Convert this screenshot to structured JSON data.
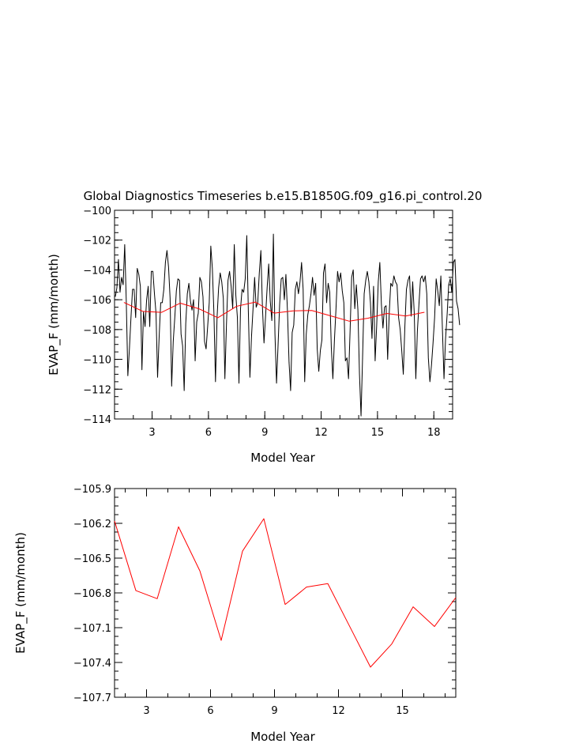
{
  "colors": {
    "monthly": "#000000",
    "annual": "#ff0000",
    "frame": "#000000"
  },
  "chart_data": [
    {
      "type": "line",
      "title": "Global Diagnostics Timeseries b.e15.B1850G.f09_g16.pi_control.20",
      "xlabel": "Model Year",
      "ylabel": "EVAP_F (mm/month)",
      "xlim": [
        1,
        19
      ],
      "ylim": [
        -114,
        -100
      ],
      "xticks": [
        3,
        6,
        9,
        12,
        15,
        18
      ],
      "xtick_labels": [
        "3",
        "6",
        "9",
        "12",
        "15",
        "18"
      ],
      "yticks": [
        -114,
        -112,
        -110,
        -108,
        -106,
        -104,
        -102,
        -100
      ],
      "ytick_labels": [
        "−114",
        "−112",
        "−110",
        "−108",
        "−106",
        "−104",
        "−102",
        "−100"
      ],
      "series": [
        {
          "color": "#000000",
          "x_start": 1.0417,
          "x_step": 0.08333,
          "values": [
            -105.8,
            -105.2,
            -103.3,
            -105.5,
            -104.5,
            -105.0,
            -102.3,
            -106.1,
            -111.1,
            -109.3,
            -107.2,
            -105.3,
            -105.3,
            -107.2,
            -103.9,
            -104.3,
            -105.1,
            -110.7,
            -106.8,
            -107.8,
            -106.0,
            -105.1,
            -107.8,
            -104.1,
            -104.1,
            -105.6,
            -106.9,
            -111.2,
            -108.5,
            -106.2,
            -106.2,
            -105.3,
            -103.5,
            -102.7,
            -103.8,
            -105.9,
            -111.8,
            -108.8,
            -107.2,
            -105.4,
            -104.6,
            -104.7,
            -108.3,
            -109.1,
            -112.1,
            -107.6,
            -105.6,
            -104.9,
            -106.1,
            -106.7,
            -106.0,
            -110.1,
            -107.5,
            -106.9,
            -104.5,
            -104.8,
            -105.8,
            -108.8,
            -109.3,
            -107.8,
            -106.2,
            -102.4,
            -103.9,
            -106.9,
            -111.5,
            -107.2,
            -105.2,
            -104.2,
            -104.8,
            -105.9,
            -111.3,
            -107.7,
            -104.7,
            -104.1,
            -105.1,
            -106.6,
            -102.3,
            -105.7,
            -107.2,
            -111.6,
            -106.6,
            -105.3,
            -105.5,
            -104.6,
            -101.7,
            -106.8,
            -111.2,
            -108.5,
            -106.6,
            -104.5,
            -106.5,
            -106.2,
            -104.2,
            -102.7,
            -106.5,
            -108.9,
            -107.1,
            -105.2,
            -103.6,
            -106.1,
            -107.4,
            -101.6,
            -108.3,
            -111.6,
            -109.0,
            -106.3,
            -104.6,
            -104.5,
            -106.0,
            -104.3,
            -106.8,
            -110.2,
            -112.1,
            -108.2,
            -107.7,
            -105.3,
            -104.8,
            -105.6,
            -104.8,
            -103.5,
            -105.3,
            -111.5,
            -108.3,
            -107.0,
            -106.4,
            -105.6,
            -104.5,
            -105.7,
            -104.9,
            -109.3,
            -110.8,
            -109.4,
            -108.7,
            -104.2,
            -103.6,
            -106.2,
            -104.9,
            -105.5,
            -109.2,
            -111.3,
            -108.7,
            -106.6,
            -104.1,
            -104.8,
            -104.2,
            -105.4,
            -106.2,
            -110.1,
            -109.9,
            -111.3,
            -108.1,
            -104.5,
            -104.0,
            -106.6,
            -105.0,
            -106.7,
            -111.0,
            -113.8,
            -109.8,
            -105.6,
            -104.7,
            -104.1,
            -104.8,
            -106.2,
            -108.6,
            -105.1,
            -110.1,
            -107.7,
            -104.8,
            -103.5,
            -106.3,
            -107.9,
            -106.5,
            -106.4,
            -110.0,
            -106.9,
            -104.9,
            -105.1,
            -104.4,
            -104.8,
            -105.0,
            -107.2,
            -108.0,
            -109.4,
            -111.0,
            -107.8,
            -105.3,
            -104.7,
            -104.4,
            -107.1,
            -104.8,
            -106.9,
            -111.3,
            -108.1,
            -106.3,
            -104.6,
            -104.4,
            -104.8,
            -104.4,
            -105.6,
            -109.9,
            -111.5,
            -110.4,
            -108.9,
            -107.2,
            -104.6,
            -105.4,
            -106.4,
            -104.4,
            -108.0,
            -111.3,
            -108.6,
            -107.0,
            -105.0,
            -104.6,
            -105.5,
            -103.5,
            -103.3,
            -106.1,
            -106.6,
            -107.7
          ]
        },
        {
          "color": "#ff0000",
          "x": [
            1.5,
            2.5,
            3.5,
            4.5,
            5.5,
            6.5,
            7.5,
            8.5,
            9.5,
            10.5,
            11.5,
            12.5,
            13.5,
            14.5,
            15.5,
            16.5,
            17.5
          ],
          "values": [
            -106.18,
            -106.78,
            -106.85,
            -106.23,
            -106.61,
            -107.21,
            -106.44,
            -106.16,
            -106.9,
            -106.75,
            -106.72,
            -107.08,
            -107.44,
            -107.24,
            -106.92,
            -107.09,
            -106.84
          ]
        }
      ]
    },
    {
      "type": "line",
      "title": "",
      "xlabel": "Model Year",
      "ylabel": "EVAP_F (mm/month)",
      "xlim": [
        1.5,
        17.5
      ],
      "ylim": [
        -107.7,
        -105.9
      ],
      "xticks": [
        3,
        6,
        9,
        12,
        15
      ],
      "xtick_labels": [
        "3",
        "6",
        "9",
        "12",
        "15"
      ],
      "yticks": [
        -107.7,
        -107.4,
        -107.1,
        -106.8,
        -106.5,
        -106.2,
        -105.9
      ],
      "ytick_labels": [
        "−107.7",
        "−107.4",
        "−107.1",
        "−106.8",
        "−106.5",
        "−106.2",
        "−105.9"
      ],
      "series": [
        {
          "color": "#ff0000",
          "x": [
            1.5,
            2.5,
            3.5,
            4.5,
            5.5,
            6.5,
            7.5,
            8.5,
            9.5,
            10.5,
            11.5,
            12.5,
            13.5,
            14.5,
            15.5,
            16.5,
            17.5
          ],
          "values": [
            -106.18,
            -106.78,
            -106.85,
            -106.23,
            -106.61,
            -107.21,
            -106.44,
            -106.16,
            -106.9,
            -106.75,
            -106.72,
            -107.08,
            -107.44,
            -107.24,
            -106.92,
            -107.09,
            -106.84
          ]
        }
      ]
    }
  ]
}
